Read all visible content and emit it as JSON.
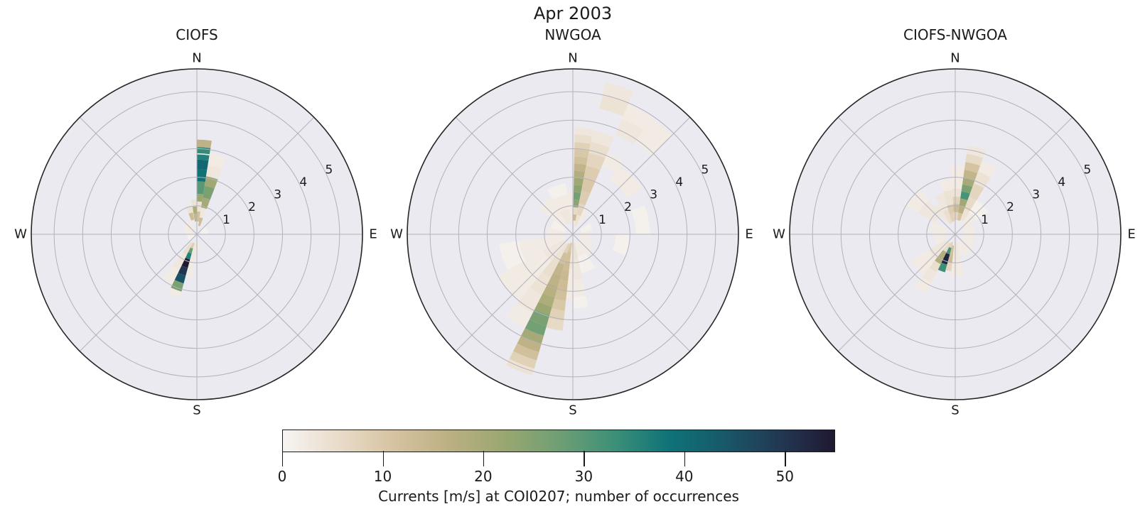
{
  "figure": {
    "title": "Apr 2003"
  },
  "colors": {
    "polar_bg": "#ebeaf1",
    "grid": "#b3b1bb",
    "outline": "#262626",
    "text": "#1a1a1a"
  },
  "colorbar": {
    "label": "Currents [m/s] at COI0207; number of occurrences",
    "ticks": [
      0,
      10,
      20,
      30,
      40,
      50
    ],
    "vmin": 0,
    "vmax": 55,
    "colormap_stops": [
      [
        0.0,
        "#f7f4f3"
      ],
      [
        0.1,
        "#e9dcca"
      ],
      [
        0.2,
        "#d6c3a1"
      ],
      [
        0.3,
        "#bcb083"
      ],
      [
        0.4,
        "#9aa771"
      ],
      [
        0.5,
        "#6f9f74"
      ],
      [
        0.6,
        "#3d9078"
      ],
      [
        0.7,
        "#0f7378"
      ],
      [
        0.78,
        "#165e6d"
      ],
      [
        0.86,
        "#1f455c"
      ],
      [
        0.93,
        "#232f4a"
      ],
      [
        1.0,
        "#1f1830"
      ]
    ]
  },
  "chart_data": [
    {
      "type": "polar_rose",
      "title": "CIOFS",
      "direction_labels": {
        "n": "N",
        "e": "E",
        "s": "S",
        "w": "W"
      },
      "r_ticks": [
        "1",
        "2",
        "3",
        "4",
        "5"
      ],
      "r_max": 5.8,
      "r_tick_angle_deg": 64,
      "cell_format": "[dir_start_deg_from_N_cw, dir_end_deg, speed_r0_mps, speed_r1_mps, occurrences]",
      "cells": [
        [
          0,
          9,
          0.1,
          0.45,
          2
        ],
        [
          0,
          9,
          0.45,
          0.8,
          12
        ],
        [
          0,
          9,
          0.8,
          1.15,
          4
        ],
        [
          0,
          9,
          1.15,
          1.42,
          22
        ],
        [
          0,
          9,
          1.42,
          1.86,
          30
        ],
        [
          0,
          9,
          1.86,
          2.28,
          39
        ],
        [
          0,
          9,
          2.28,
          2.62,
          41
        ],
        [
          0,
          9,
          2.62,
          2.8,
          36
        ],
        [
          0,
          9,
          2.84,
          3.06,
          34
        ],
        [
          0,
          9,
          3.06,
          3.32,
          16
        ],
        [
          9,
          21,
          0.3,
          0.6,
          13
        ],
        [
          9,
          21,
          0.6,
          0.95,
          3
        ],
        [
          9,
          21,
          0.95,
          1.3,
          20
        ],
        [
          9,
          21,
          1.3,
          1.72,
          26
        ],
        [
          9,
          21,
          1.72,
          2.06,
          21
        ],
        [
          9,
          21,
          2.06,
          2.46,
          3
        ],
        [
          9,
          21,
          2.46,
          2.86,
          2
        ],
        [
          351,
          360,
          0.45,
          0.72,
          15
        ],
        [
          351,
          360,
          0.72,
          0.98,
          19
        ],
        [
          351,
          360,
          0.98,
          1.22,
          4
        ],
        [
          338,
          350,
          0.52,
          0.78,
          13
        ],
        [
          338,
          350,
          0.78,
          1.02,
          4
        ],
        [
          315,
          337,
          0.2,
          0.55,
          2
        ],
        [
          292,
          315,
          0.2,
          0.5,
          2
        ],
        [
          270,
          292,
          0.15,
          0.45,
          2
        ],
        [
          225,
          270,
          0.1,
          0.35,
          1
        ],
        [
          45,
          90,
          0.15,
          0.4,
          1
        ],
        [
          195,
          206,
          0.32,
          0.52,
          9
        ],
        [
          195,
          206,
          0.52,
          0.7,
          28
        ],
        [
          195,
          206,
          0.7,
          0.92,
          36
        ],
        [
          195,
          206,
          0.92,
          1.22,
          55
        ],
        [
          195,
          206,
          1.22,
          1.5,
          50
        ],
        [
          195,
          206,
          1.5,
          1.78,
          45
        ],
        [
          195,
          206,
          1.78,
          2.08,
          26
        ],
        [
          195,
          206,
          2.08,
          2.3,
          2
        ],
        [
          186,
          195,
          0.3,
          0.9,
          3
        ],
        [
          186,
          195,
          0.9,
          1.55,
          2
        ],
        [
          206,
          218,
          0.35,
          0.8,
          5
        ],
        [
          206,
          218,
          0.8,
          1.4,
          3
        ],
        [
          206,
          218,
          1.4,
          1.95,
          2
        ],
        [
          168,
          186,
          0.25,
          0.6,
          2
        ]
      ]
    },
    {
      "type": "polar_rose",
      "title": "NWGOA",
      "direction_labels": {
        "n": "N",
        "e": "E",
        "s": "S",
        "w": "W"
      },
      "r_ticks": [
        "1",
        "2",
        "3",
        "4",
        "5"
      ],
      "r_max": 5.8,
      "r_tick_angle_deg": 64,
      "cell_format": "[dir_start_deg_from_N_cw, dir_end_deg, speed_r0_mps, speed_r1_mps, occurrences]",
      "cells": [
        [
          1,
          11,
          0.28,
          0.48,
          3
        ],
        [
          1,
          11,
          0.48,
          0.7,
          13
        ],
        [
          1,
          11,
          0.7,
          0.95,
          6
        ],
        [
          1,
          11,
          0.95,
          1.22,
          24
        ],
        [
          1,
          11,
          1.22,
          1.48,
          27
        ],
        [
          1,
          11,
          1.48,
          1.73,
          24
        ],
        [
          1,
          11,
          1.73,
          1.98,
          21
        ],
        [
          1,
          11,
          1.98,
          2.23,
          18
        ],
        [
          1,
          11,
          2.23,
          2.48,
          15
        ],
        [
          1,
          11,
          2.48,
          2.73,
          12
        ],
        [
          1,
          11,
          2.73,
          2.98,
          10
        ],
        [
          1,
          11,
          2.98,
          3.23,
          8
        ],
        [
          1,
          11,
          3.23,
          3.5,
          5
        ],
        [
          1,
          11,
          3.5,
          3.75,
          3
        ],
        [
          11,
          23,
          0.3,
          0.7,
          4
        ],
        [
          11,
          23,
          0.7,
          1.1,
          7
        ],
        [
          11,
          23,
          1.1,
          1.55,
          9
        ],
        [
          11,
          23,
          1.55,
          2.0,
          10
        ],
        [
          11,
          23,
          2.0,
          2.45,
          9
        ],
        [
          11,
          23,
          2.45,
          2.9,
          7
        ],
        [
          11,
          23,
          2.9,
          3.3,
          5
        ],
        [
          11,
          23,
          3.3,
          3.7,
          3
        ],
        [
          12,
          23,
          4.5,
          5.0,
          4
        ],
        [
          12,
          23,
          5.0,
          5.45,
          3
        ],
        [
          23,
          34,
          0.4,
          1.0,
          2
        ],
        [
          23,
          34,
          2.6,
          3.1,
          2
        ],
        [
          23,
          34,
          3.8,
          4.4,
          3
        ],
        [
          23,
          34,
          4.4,
          4.95,
          2
        ],
        [
          34,
          45,
          3.9,
          4.9,
          2
        ],
        [
          34,
          56,
          2.3,
          2.9,
          2
        ],
        [
          56,
          79,
          0.3,
          0.7,
          1
        ],
        [
          79,
          101,
          0.2,
          0.6,
          2
        ],
        [
          68,
          90,
          2.2,
          2.7,
          1
        ],
        [
          90,
          112,
          1.5,
          2.0,
          1
        ],
        [
          101,
          124,
          0.25,
          0.7,
          2
        ],
        [
          124,
          146,
          0.3,
          0.9,
          2
        ],
        [
          146,
          168,
          0.3,
          0.8,
          2
        ],
        [
          146,
          168,
          0.8,
          1.4,
          1
        ],
        [
          180,
          186,
          0.3,
          1.2,
          3
        ],
        [
          180,
          186,
          1.2,
          2.3,
          2
        ],
        [
          168,
          180,
          0.3,
          0.9,
          4
        ],
        [
          168,
          180,
          0.9,
          1.6,
          3
        ],
        [
          168,
          180,
          1.6,
          2.2,
          2
        ],
        [
          168,
          180,
          2.2,
          2.6,
          1
        ],
        [
          186,
          196,
          0.3,
          0.6,
          10
        ],
        [
          186,
          196,
          0.6,
          0.95,
          12
        ],
        [
          186,
          196,
          0.95,
          1.3,
          13
        ],
        [
          186,
          196,
          1.3,
          1.65,
          14
        ],
        [
          186,
          196,
          1.65,
          2.0,
          13
        ],
        [
          186,
          196,
          2.0,
          2.35,
          12
        ],
        [
          186,
          196,
          2.35,
          2.7,
          10
        ],
        [
          186,
          196,
          2.7,
          3.05,
          8
        ],
        [
          186,
          196,
          3.05,
          3.4,
          6
        ],
        [
          196,
          207,
          0.35,
          0.7,
          8
        ],
        [
          196,
          207,
          0.7,
          1.1,
          12
        ],
        [
          196,
          207,
          1.1,
          1.5,
          15
        ],
        [
          196,
          207,
          1.5,
          1.9,
          16
        ],
        [
          196,
          207,
          1.9,
          2.3,
          17
        ],
        [
          196,
          207,
          2.3,
          2.65,
          19
        ],
        [
          196,
          207,
          2.65,
          2.95,
          22
        ],
        [
          196,
          207,
          2.95,
          3.35,
          26
        ],
        [
          196,
          207,
          3.35,
          3.7,
          27
        ],
        [
          196,
          207,
          3.7,
          4.0,
          20
        ],
        [
          196,
          207,
          4.0,
          4.3,
          16
        ],
        [
          196,
          207,
          4.3,
          4.6,
          12
        ],
        [
          196,
          207,
          4.6,
          4.9,
          8
        ],
        [
          196,
          207,
          4.9,
          5.15,
          4
        ],
        [
          207,
          219,
          0.4,
          1.0,
          4
        ],
        [
          207,
          219,
          1.0,
          1.7,
          5
        ],
        [
          207,
          219,
          1.7,
          2.4,
          4
        ],
        [
          207,
          219,
          2.4,
          3.1,
          3
        ],
        [
          207,
          219,
          3.1,
          3.7,
          2
        ],
        [
          219,
          241,
          0.4,
          1.2,
          3
        ],
        [
          219,
          241,
          1.2,
          2.1,
          2
        ],
        [
          219,
          241,
          2.1,
          3.0,
          2
        ],
        [
          241,
          263,
          0.3,
          1.0,
          2
        ],
        [
          241,
          263,
          1.0,
          1.9,
          2
        ],
        [
          241,
          263,
          1.9,
          2.6,
          1
        ],
        [
          263,
          285,
          0.3,
          0.9,
          2
        ],
        [
          285,
          307,
          0.3,
          0.8,
          1
        ],
        [
          307,
          330,
          0.4,
          1.0,
          2
        ],
        [
          307,
          330,
          1.0,
          1.5,
          2
        ],
        [
          330,
          352,
          0.4,
          0.9,
          3
        ],
        [
          330,
          352,
          0.9,
          1.4,
          2
        ],
        [
          330,
          352,
          1.4,
          1.8,
          1
        ],
        [
          352,
          360,
          0.4,
          1.5,
          2
        ]
      ]
    },
    {
      "type": "polar_rose",
      "title": "CIOFS-NWGOA",
      "direction_labels": {
        "n": "N",
        "e": "E",
        "s": "S",
        "w": "W"
      },
      "r_ticks": [
        "1",
        "2",
        "3",
        "4",
        "5"
      ],
      "r_max": 5.8,
      "r_tick_angle_deg": 64,
      "cell_format": "[dir_start_deg_from_N_cw, dir_end_deg, speed_r0_mps, speed_r1_mps, occurrences]",
      "cells": [
        [
          8,
          20,
          0.5,
          0.76,
          11
        ],
        [
          8,
          20,
          0.76,
          1.02,
          17
        ],
        [
          8,
          20,
          1.02,
          1.27,
          21
        ],
        [
          8,
          20,
          1.27,
          1.52,
          32
        ],
        [
          8,
          20,
          1.52,
          1.77,
          26
        ],
        [
          8,
          20,
          1.77,
          2.02,
          20
        ],
        [
          8,
          20,
          2.02,
          2.28,
          15
        ],
        [
          8,
          20,
          2.28,
          2.56,
          11
        ],
        [
          8,
          20,
          2.56,
          2.85,
          6
        ],
        [
          8,
          20,
          2.85,
          3.15,
          3
        ],
        [
          20,
          32,
          0.55,
          0.95,
          4
        ],
        [
          20,
          32,
          0.95,
          1.4,
          6
        ],
        [
          20,
          32,
          1.4,
          1.9,
          7
        ],
        [
          20,
          32,
          1.9,
          2.35,
          4
        ],
        [
          20,
          32,
          2.35,
          2.75,
          2
        ],
        [
          356,
          8,
          0.5,
          0.78,
          7
        ],
        [
          356,
          8,
          0.78,
          1.06,
          13
        ],
        [
          356,
          8,
          1.06,
          1.32,
          8
        ],
        [
          356,
          8,
          1.32,
          1.6,
          4
        ],
        [
          356,
          8,
          1.6,
          2.4,
          2
        ],
        [
          344,
          356,
          0.45,
          0.75,
          8
        ],
        [
          344,
          356,
          0.75,
          1.05,
          9
        ],
        [
          344,
          356,
          1.05,
          1.55,
          4
        ],
        [
          344,
          356,
          1.55,
          1.95,
          2
        ],
        [
          332,
          344,
          0.4,
          0.9,
          5
        ],
        [
          332,
          344,
          0.9,
          1.5,
          3
        ],
        [
          322,
          332,
          0.5,
          1.2,
          3
        ],
        [
          300,
          322,
          0.8,
          1.5,
          3
        ],
        [
          300,
          322,
          1.5,
          2.0,
          2
        ],
        [
          278,
          300,
          0.3,
          0.9,
          2
        ],
        [
          240,
          278,
          0.3,
          0.75,
          2
        ],
        [
          32,
          56,
          0.4,
          0.9,
          2
        ],
        [
          32,
          56,
          0.9,
          1.4,
          1
        ],
        [
          56,
          90,
          0.3,
          0.7,
          2
        ],
        [
          90,
          124,
          0.25,
          0.7,
          2
        ],
        [
          124,
          157,
          0.3,
          0.8,
          2
        ],
        [
          157,
          168,
          0.3,
          0.7,
          2
        ],
        [
          195,
          206,
          0.3,
          0.5,
          8
        ],
        [
          195,
          206,
          0.5,
          0.73,
          32
        ],
        [
          195,
          206,
          0.73,
          1.1,
          53
        ],
        [
          195,
          206,
          1.1,
          1.38,
          33
        ],
        [
          186,
          195,
          0.4,
          0.7,
          12
        ],
        [
          186,
          195,
          0.7,
          1.0,
          13
        ],
        [
          186,
          195,
          1.0,
          1.3,
          7
        ],
        [
          206,
          218,
          0.35,
          0.7,
          6
        ],
        [
          206,
          218,
          0.7,
          1.17,
          18
        ],
        [
          206,
          218,
          1.17,
          1.48,
          5
        ],
        [
          206,
          218,
          1.48,
          1.9,
          3
        ],
        [
          206,
          218,
          1.9,
          2.3,
          2
        ],
        [
          218,
          240,
          0.4,
          1.1,
          3
        ],
        [
          218,
          240,
          1.1,
          1.8,
          2
        ],
        [
          168,
          186,
          0.3,
          0.9,
          3
        ],
        [
          168,
          186,
          0.9,
          1.5,
          2
        ]
      ]
    }
  ]
}
